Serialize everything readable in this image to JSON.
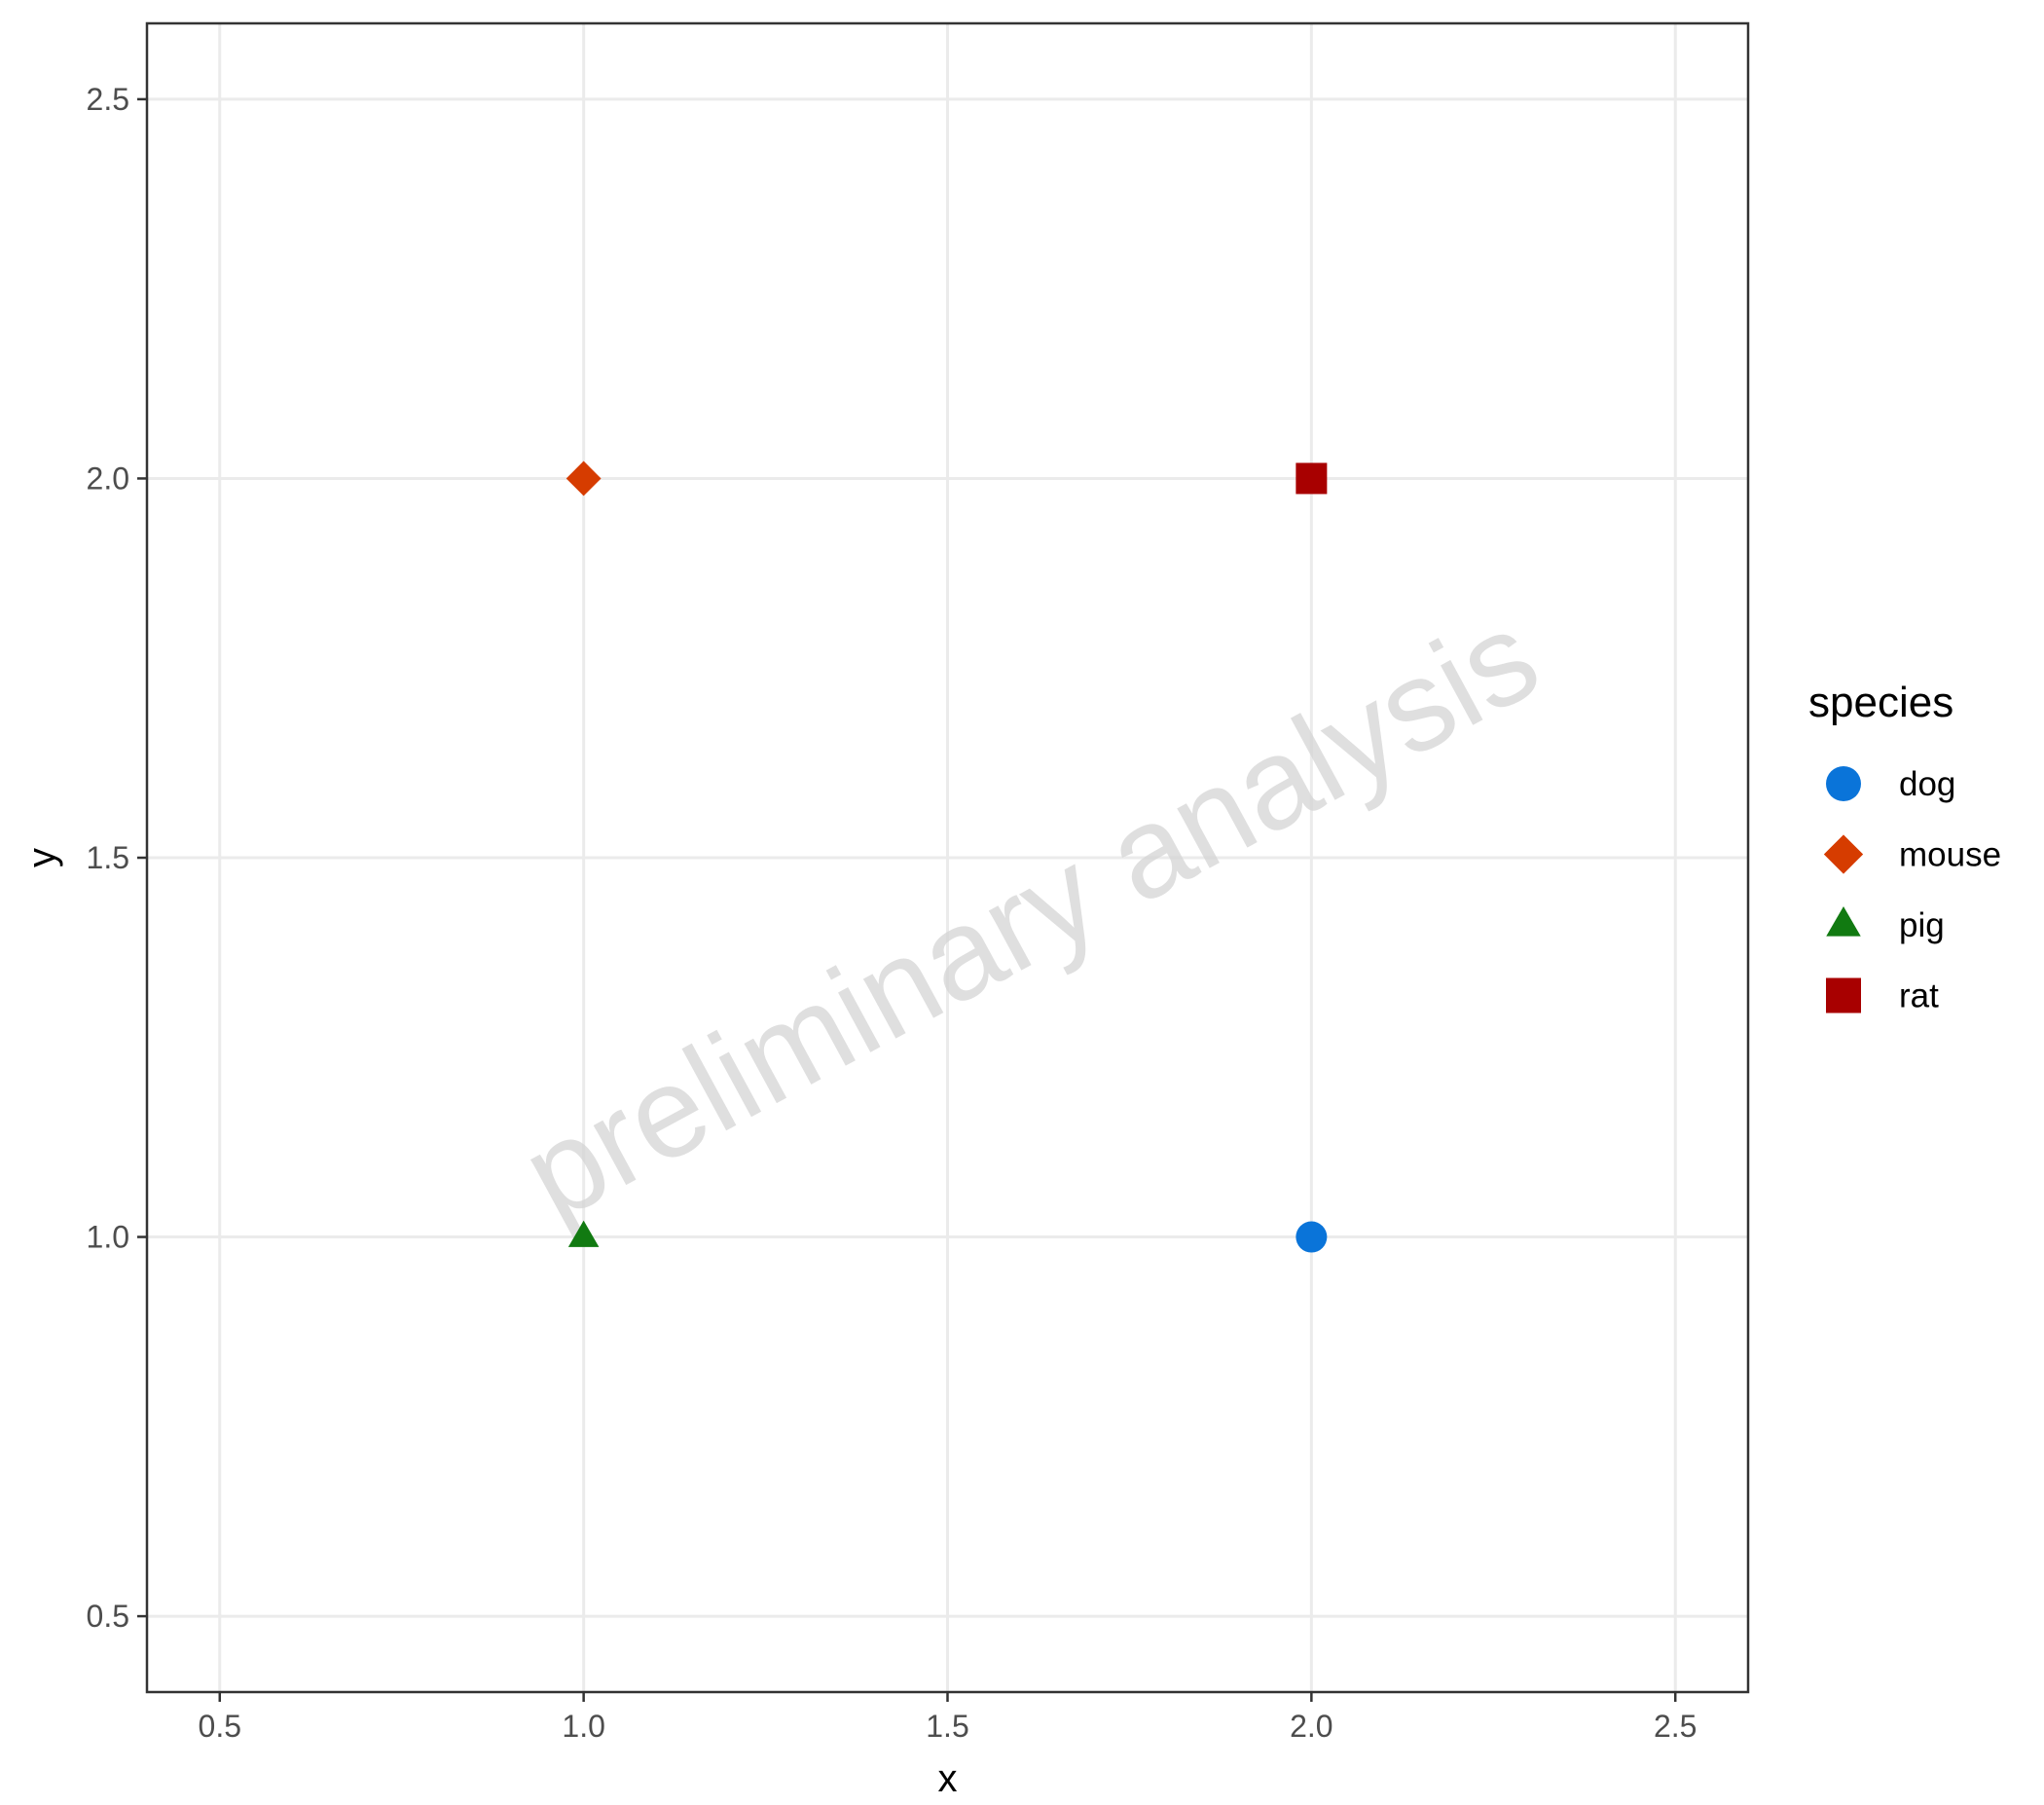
{
  "chart_data": {
    "type": "scatter",
    "xlabel": "x",
    "ylabel": "y",
    "xlim": [
      0.4,
      2.6
    ],
    "ylim": [
      0.4,
      2.6
    ],
    "x_ticks": [
      0.5,
      1.0,
      1.5,
      2.0,
      2.5
    ],
    "y_ticks": [
      0.5,
      1.0,
      1.5,
      2.0,
      2.5
    ],
    "x_tick_labels": [
      "0.5",
      "1.0",
      "1.5",
      "2.0",
      "2.5"
    ],
    "y_tick_labels": [
      "0.5",
      "1.0",
      "1.5",
      "2.0",
      "2.5"
    ],
    "grid": true,
    "legend": {
      "title": "species",
      "placement": "right"
    },
    "watermark": "preliminary analysis",
    "series": [
      {
        "name": "dog",
        "shape": "circle",
        "color": "#0a74d9",
        "points": [
          {
            "x": 2.0,
            "y": 1.0
          }
        ]
      },
      {
        "name": "mouse",
        "shape": "diamond",
        "color": "#d63c00",
        "points": [
          {
            "x": 1.0,
            "y": 2.0
          }
        ]
      },
      {
        "name": "pig",
        "shape": "triangle",
        "color": "#117a11",
        "points": [
          {
            "x": 1.0,
            "y": 1.0
          }
        ]
      },
      {
        "name": "rat",
        "shape": "square",
        "color": "#a80000",
        "points": [
          {
            "x": 2.0,
            "y": 2.0
          }
        ]
      }
    ]
  }
}
